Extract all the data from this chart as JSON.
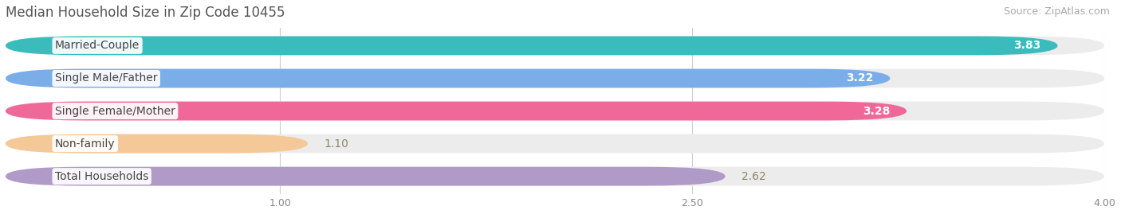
{
  "title": "Median Household Size in Zip Code 10455",
  "source": "Source: ZipAtlas.com",
  "categories": [
    "Married-Couple",
    "Single Male/Father",
    "Single Female/Mother",
    "Non-family",
    "Total Households"
  ],
  "values": [
    3.83,
    3.22,
    3.28,
    1.1,
    2.62
  ],
  "bar_colors": [
    "#3bbcbc",
    "#7baee8",
    "#f06898",
    "#f5c897",
    "#b09ac8"
  ],
  "value_colors": [
    "white",
    "white",
    "white",
    "#888855",
    "#666666"
  ],
  "xlim_data": [
    0,
    4.0
  ],
  "x_max_display": 4.0,
  "xticks": [
    1.0,
    2.5,
    4.0
  ],
  "bg_color": "#ffffff",
  "bar_bg_color": "#ececec",
  "title_fontsize": 12,
  "source_fontsize": 9,
  "value_fontsize": 10,
  "category_fontsize": 10,
  "bar_height": 0.58,
  "bar_spacing": 1.0
}
